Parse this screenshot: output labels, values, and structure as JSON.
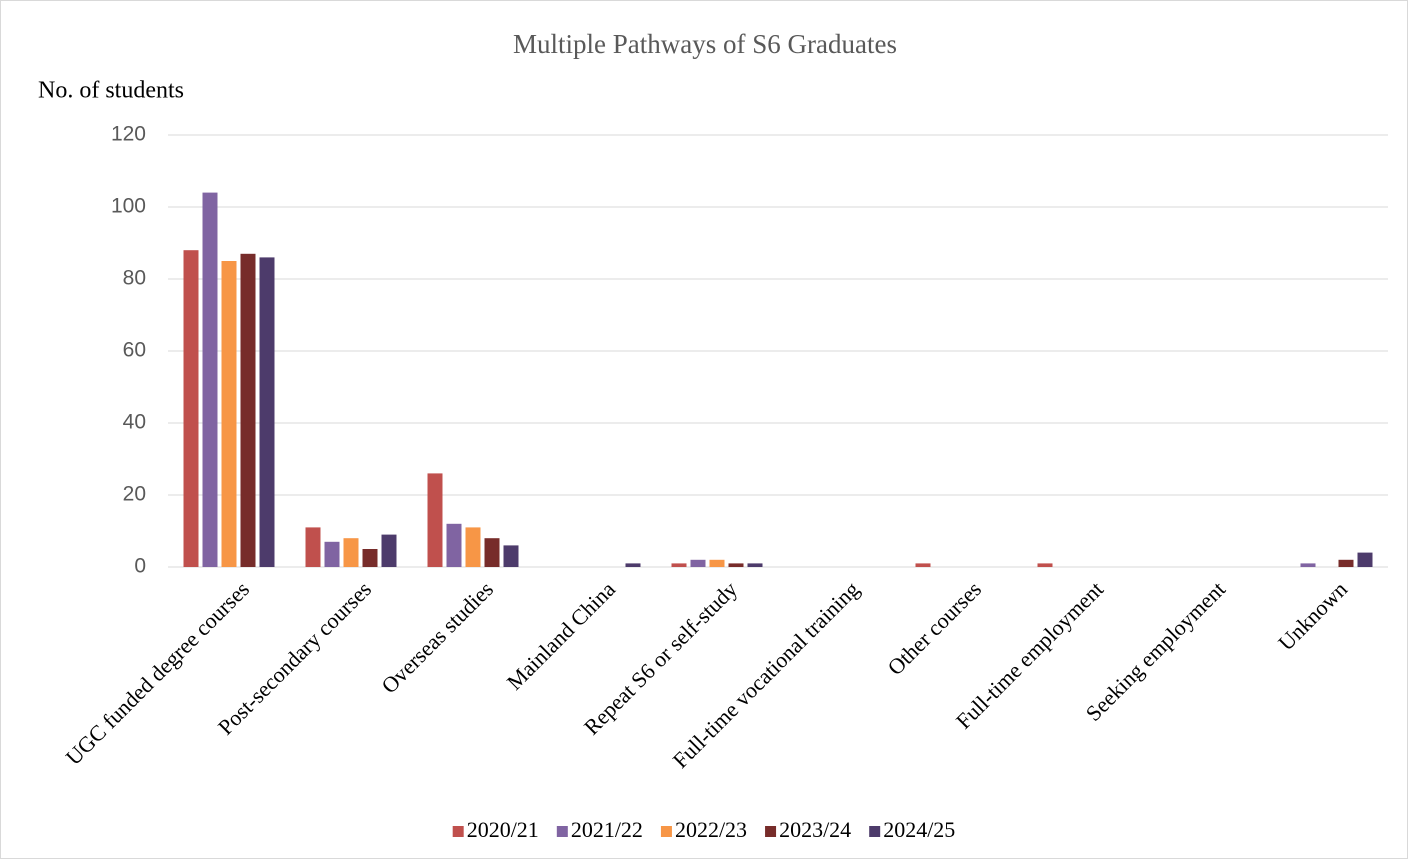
{
  "chart_data": {
    "type": "bar",
    "title": "Multiple Pathways of S6 Graduates",
    "y_label": "No. of students",
    "categories": [
      "UGC funded degree courses",
      "Post-secondary courses",
      "Overseas studies",
      "Mainland China",
      "Repeat S6 or self-study",
      "Full-time vocational training",
      "Other courses",
      "Full-time employment",
      "Seeking employment",
      "Unknown"
    ],
    "series": [
      {
        "name": "2020/21",
        "color": "#c0504d",
        "values": [
          88,
          11,
          26,
          0,
          1,
          0,
          1,
          1,
          0,
          0
        ]
      },
      {
        "name": "2021/22",
        "color": "#8064a2",
        "values": [
          104,
          7,
          12,
          0,
          2,
          0,
          0,
          0,
          0,
          1
        ]
      },
      {
        "name": "2022/23",
        "color": "#f79646",
        "values": [
          85,
          8,
          11,
          0,
          2,
          0,
          0,
          0,
          0,
          0
        ]
      },
      {
        "name": "2023/24",
        "color": "#772c2a",
        "values": [
          87,
          5,
          8,
          0,
          1,
          0,
          0,
          0,
          0,
          2
        ]
      },
      {
        "name": "2024/25",
        "color": "#4d3b6b",
        "values": [
          86,
          9,
          6,
          1,
          1,
          0,
          0,
          0,
          0,
          4
        ]
      }
    ],
    "ylim": [
      0,
      120
    ],
    "yticks": [
      0,
      20,
      40,
      60,
      80,
      100,
      120
    ],
    "grid": true,
    "legend": "bottom"
  }
}
